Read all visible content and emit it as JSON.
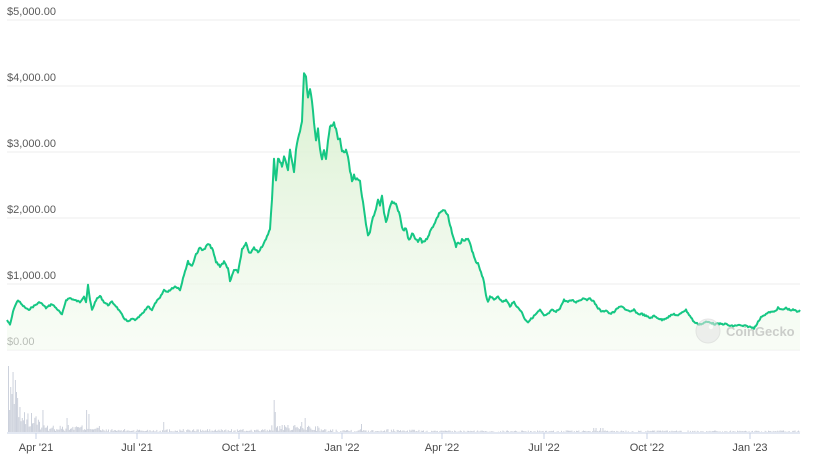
{
  "chart_data": {
    "type": "area",
    "title": "",
    "xlabel": "",
    "ylabel": "",
    "ylim": [
      0,
      5000
    ],
    "grid": true,
    "legend": null,
    "y_ticks": [
      "$0.00",
      "$1,000.00",
      "$2,000.00",
      "$3,000.00",
      "$4,000.00",
      "$5,000.00"
    ],
    "x_ticks": [
      "Apr '21",
      "Jul '21",
      "Oct '21",
      "Jan '22",
      "Apr '22",
      "Jul '22",
      "Oct '22",
      "Jan '23"
    ],
    "line_color": "#16c784",
    "fill_color": "#e3f4dc",
    "volume_color": "#c7ccd8",
    "watermark": "CoinGecko",
    "series": [
      {
        "name": "Price",
        "points": [
          {
            "x": "Feb '21",
            "y": 350
          },
          {
            "x": "Mar '21",
            "y": 650
          },
          {
            "x": "Mar '21",
            "y": 500
          },
          {
            "x": "Apr '21",
            "y": 620
          },
          {
            "x": "Apr '21",
            "y": 580
          },
          {
            "x": "May '21",
            "y": 700
          },
          {
            "x": "May '21",
            "y": 950
          },
          {
            "x": "May '21",
            "y": 560
          },
          {
            "x": "Jun '21",
            "y": 650
          },
          {
            "x": "Jun '21",
            "y": 420
          },
          {
            "x": "Jul '21",
            "y": 450
          },
          {
            "x": "Jul '21",
            "y": 620
          },
          {
            "x": "Aug '21",
            "y": 850
          },
          {
            "x": "Aug '21",
            "y": 1200
          },
          {
            "x": "Sep '21",
            "y": 1580
          },
          {
            "x": "Sep '21",
            "y": 1100
          },
          {
            "x": "Sep '21",
            "y": 1000
          },
          {
            "x": "Oct '21",
            "y": 1550
          },
          {
            "x": "Oct '21",
            "y": 1450
          },
          {
            "x": "Oct '21",
            "y": 1600
          },
          {
            "x": "Oct '21",
            "y": 2800
          },
          {
            "x": "Nov '21",
            "y": 2950
          },
          {
            "x": "Nov '21",
            "y": 2600
          },
          {
            "x": "Nov '21",
            "y": 3500
          },
          {
            "x": "Dec '21",
            "y": 4270
          },
          {
            "x": "Dec '21",
            "y": 3800
          },
          {
            "x": "Dec '21",
            "y": 3000
          },
          {
            "x": "Jan '22",
            "y": 3450
          },
          {
            "x": "Jan '22",
            "y": 3100
          },
          {
            "x": "Jan '22",
            "y": 2500
          },
          {
            "x": "Feb '22",
            "y": 2700
          },
          {
            "x": "Feb '22",
            "y": 1800
          },
          {
            "x": "Feb '22",
            "y": 2350
          },
          {
            "x": "Mar '22",
            "y": 1700
          },
          {
            "x": "Mar '22",
            "y": 1650
          },
          {
            "x": "Apr '22",
            "y": 2150
          },
          {
            "x": "Apr '22",
            "y": 1700
          },
          {
            "x": "May '22",
            "y": 1500
          },
          {
            "x": "May '22",
            "y": 800
          },
          {
            "x": "Jun '22",
            "y": 700
          },
          {
            "x": "Jun '22",
            "y": 450
          },
          {
            "x": "Jul '22",
            "y": 600
          },
          {
            "x": "Aug '22",
            "y": 800
          },
          {
            "x": "Aug '22",
            "y": 820
          },
          {
            "x": "Sep '22",
            "y": 600
          },
          {
            "x": "Oct '22",
            "y": 550
          },
          {
            "x": "Nov '22",
            "y": 450
          },
          {
            "x": "Nov '22",
            "y": 600
          },
          {
            "x": "Dec '22",
            "y": 380
          },
          {
            "x": "Dec '22",
            "y": 350
          },
          {
            "x": "Jan '23",
            "y": 550
          },
          {
            "x": "Jan '23",
            "y": 650
          },
          {
            "x": "Feb '23",
            "y": 600
          }
        ]
      },
      {
        "name": "Volume",
        "note": "Relative bar heights; spikes near Mar '21 and Nov–Dec '21"
      }
    ]
  }
}
